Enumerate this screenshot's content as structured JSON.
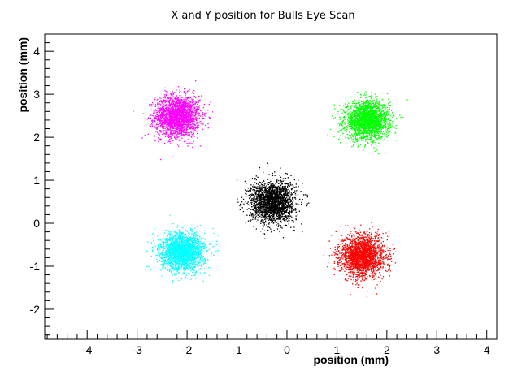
{
  "chart_data": {
    "type": "scatter",
    "title": "X and Y position for Bulls Eye Scan",
    "xlabel": "position (mm)",
    "ylabel": "position (mm)",
    "xlim": [
      -4.85,
      4.2
    ],
    "ylim": [
      -2.7,
      4.4
    ],
    "xticks": [
      -4,
      -3,
      -2,
      -1,
      0,
      1,
      2,
      3,
      4
    ],
    "xtick_labels": [
      "-4",
      "-3",
      "-2",
      "-1",
      "0",
      "1",
      "2",
      "3",
      "4"
    ],
    "yticks": [
      -2,
      -1,
      0,
      1,
      2,
      3,
      4
    ],
    "ytick_labels": [
      "-2",
      "-1",
      "0",
      "1",
      "2",
      "3",
      "4"
    ],
    "grid": false,
    "series": [
      {
        "color": "#ff00ff",
        "center": [
          -2.2,
          2.5
        ],
        "sigma": [
          0.22,
          0.24
        ]
      },
      {
        "color": "#00ff00",
        "center": [
          1.6,
          2.4
        ],
        "sigma": [
          0.22,
          0.22
        ]
      },
      {
        "color": "#000000",
        "center": [
          -0.3,
          0.5
        ],
        "sigma": [
          0.22,
          0.24
        ]
      },
      {
        "color": "#00ffff",
        "center": [
          -2.1,
          -0.65
        ],
        "sigma": [
          0.22,
          0.22
        ]
      },
      {
        "color": "#ff0000",
        "center": [
          1.5,
          -0.75
        ],
        "sigma": [
          0.22,
          0.24
        ]
      }
    ]
  }
}
